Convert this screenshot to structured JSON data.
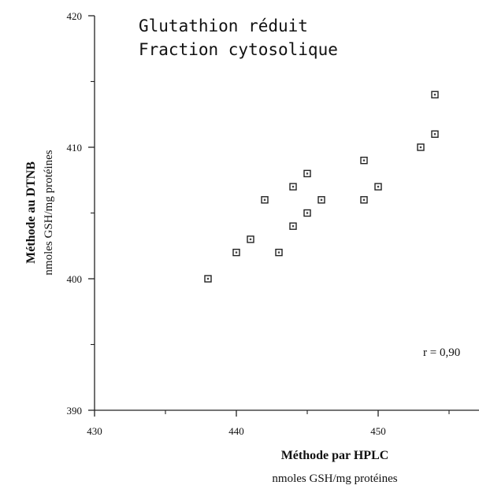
{
  "chart_data": {
    "type": "scatter",
    "title": "Glutathion réduit",
    "subtitle": "Fraction cytosolique",
    "xlabel": "Méthode par HPLC",
    "xlabel_unit": "nmoles GSH/mg protéines",
    "ylabel": "Méthode au DTNB",
    "ylabel_unit": "nmoles GSH/mg protéines",
    "xlim": [
      430,
      455
    ],
    "ylim": [
      390,
      420
    ],
    "x_ticks": [
      "430",
      "440",
      "450"
    ],
    "y_ticks": [
      "390",
      "400",
      "410",
      "420"
    ],
    "annotation": "r = 0,90",
    "grid": false,
    "points": [
      {
        "x": 438,
        "y": 400
      },
      {
        "x": 440,
        "y": 402
      },
      {
        "x": 441,
        "y": 403
      },
      {
        "x": 442,
        "y": 406
      },
      {
        "x": 443,
        "y": 402
      },
      {
        "x": 444,
        "y": 404
      },
      {
        "x": 444,
        "y": 407
      },
      {
        "x": 445,
        "y": 405
      },
      {
        "x": 445,
        "y": 408
      },
      {
        "x": 446,
        "y": 406
      },
      {
        "x": 449,
        "y": 406
      },
      {
        "x": 449,
        "y": 409
      },
      {
        "x": 450,
        "y": 407
      },
      {
        "x": 453,
        "y": 410
      },
      {
        "x": 454,
        "y": 411
      },
      {
        "x": 454,
        "y": 414
      }
    ]
  }
}
